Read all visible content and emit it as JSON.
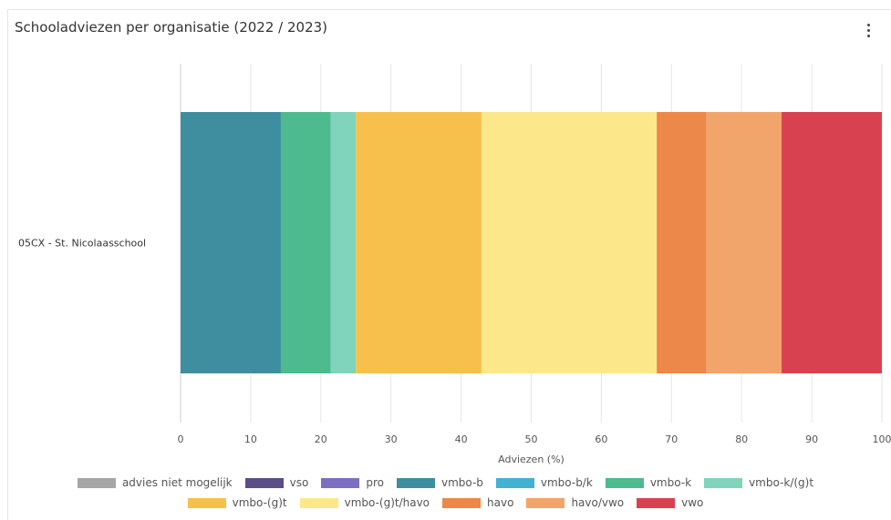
{
  "header": {
    "title": "Schooladviezen per organisatie (2022 / 2023)"
  },
  "chart_data": {
    "type": "bar",
    "orientation": "horizontal",
    "stacked": true,
    "title": "Schooladviezen per organisatie (2022 / 2023)",
    "xlabel": "Adviezen (%)",
    "ylabel": "",
    "xlim": [
      0,
      100
    ],
    "x_ticks": [
      0,
      10,
      20,
      30,
      40,
      50,
      60,
      70,
      80,
      90,
      100
    ],
    "grid": true,
    "legend_position": "bottom",
    "categories": [
      "05CX - St. Nicolaasschool"
    ],
    "series": [
      {
        "name": "advies niet mogelijk",
        "color": "#a6a6a6",
        "values": [
          0
        ]
      },
      {
        "name": "vso",
        "color": "#5b4e86",
        "values": [
          0
        ]
      },
      {
        "name": "pro",
        "color": "#7c6fc1",
        "values": [
          0
        ]
      },
      {
        "name": "vmbo-b",
        "color": "#3f8e9f",
        "values": [
          14.3
        ]
      },
      {
        "name": "vmbo-b/k",
        "color": "#43b2d0",
        "values": [
          0
        ]
      },
      {
        "name": "vmbo-k",
        "color": "#4dbb8e",
        "values": [
          7.1
        ]
      },
      {
        "name": "vmbo-k/(g)t",
        "color": "#7fd4bb",
        "values": [
          3.6
        ]
      },
      {
        "name": "vmbo-(g)t",
        "color": "#f7c04c",
        "values": [
          17.9
        ]
      },
      {
        "name": "vmbo-(g)t/havo",
        "color": "#fce78b",
        "values": [
          25.0
        ]
      },
      {
        "name": "havo",
        "color": "#ec8849",
        "values": [
          7.1
        ]
      },
      {
        "name": "havo/vwo",
        "color": "#f1a56b",
        "values": [
          10.7
        ]
      },
      {
        "name": "vwo",
        "color": "#d84250",
        "values": [
          14.3
        ]
      }
    ]
  },
  "legend_rows": [
    [
      "advies niet mogelijk",
      "vso",
      "pro",
      "vmbo-b",
      "vmbo-b/k",
      "vmbo-k",
      "vmbo-k/(g)t"
    ],
    [
      "vmbo-(g)t",
      "vmbo-(g)t/havo",
      "havo",
      "havo/vwo",
      "vwo"
    ]
  ]
}
